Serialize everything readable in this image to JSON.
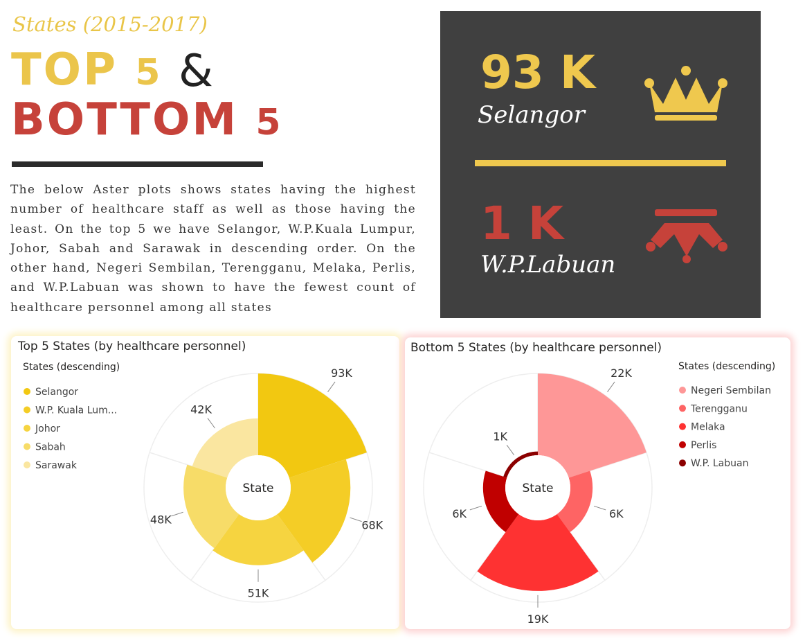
{
  "header": {
    "subtitle": "States (2015-2017)",
    "top_word": "TOP",
    "top_number": "5",
    "ampersand": "&",
    "bottom_word": "BOTTOM",
    "bottom_number": "5",
    "description": "The below Aster plots shows states having the highest number of healthcare staff as well as those having the least. On the top 5 we have Selangor, W.P.Kuala Lumpur, Johor, Sabah and Sarawak in descending order. On the other hand, Negeri Sembilan, Terengganu, Melaka, Perlis, and W.P.Labuan was shown to have the fewest count of healthcare personnel among all states"
  },
  "kpi": {
    "top_value": "93 K",
    "top_state": "Selangor",
    "bottom_value": "1 K",
    "bottom_state": "W.P.Labuan"
  },
  "chart_data": [
    {
      "type": "aster",
      "title": "Top 5 States (by healthcare personnel)",
      "legend_title": "States (descending)",
      "center_label": "State",
      "categories": [
        "Selangor",
        "W.P. Kuala Lum...",
        "Johor",
        "Sabah",
        "Sarawak"
      ],
      "values": [
        93,
        68,
        51,
        48,
        42
      ],
      "value_labels": [
        "93K",
        "68K",
        "51K",
        "48K",
        "42K"
      ],
      "colors": [
        "#f2c811",
        "#f4cd26",
        "#f6d440",
        "#f7dc68",
        "#fae6a0"
      ]
    },
    {
      "type": "aster",
      "title": "Bottom 5 States (by healthcare personnel)",
      "legend_title": "States (descending)",
      "center_label": "State",
      "categories": [
        "Negeri Sembilan",
        "Terengganu",
        "Melaka",
        "Perlis",
        "W.P. Labuan"
      ],
      "values": [
        22,
        6,
        19,
        6,
        1
      ],
      "value_labels": [
        "22K",
        "6K",
        "19K",
        "6K",
        "1K"
      ],
      "colors": [
        "#fe9797",
        "#fe6464",
        "#fe3232",
        "#c00000",
        "#8b0000"
      ]
    }
  ]
}
